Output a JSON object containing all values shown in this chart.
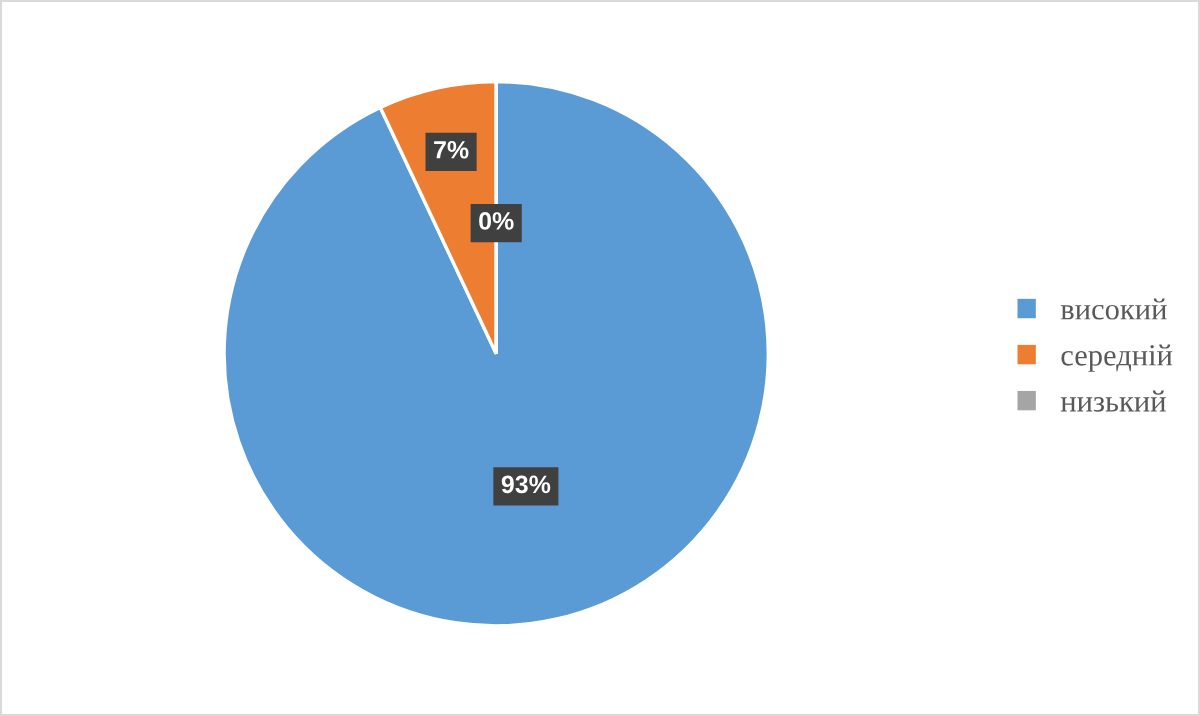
{
  "chart_data": {
    "type": "pie",
    "categories": [
      "високий",
      "середній",
      "низький"
    ],
    "values": [
      93,
      7,
      0
    ],
    "colors": [
      "#5b9bd5",
      "#ed7d31",
      "#a5a5a5"
    ],
    "value_labels": [
      "93%",
      "7%",
      "0%"
    ],
    "legend": "right"
  }
}
